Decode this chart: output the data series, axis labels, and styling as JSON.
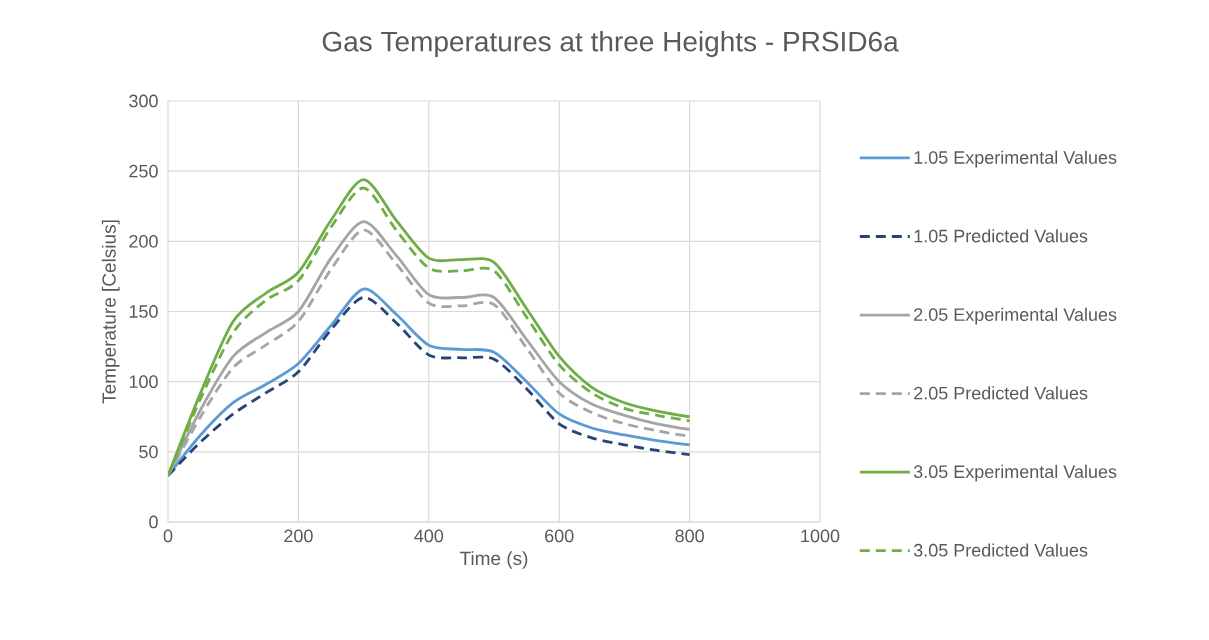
{
  "chart_data": {
    "type": "line",
    "title": "Gas Temperatures at three Heights - PRSID6a",
    "xlabel": "Time (s)",
    "ylabel": "Temperature [Celsius]",
    "x": [
      0,
      50,
      100,
      150,
      200,
      250,
      300,
      350,
      400,
      450,
      500,
      550,
      600,
      650,
      700,
      750,
      800
    ],
    "series": [
      {
        "name": "1.05 Experimental Values",
        "color": "#5b9bd5",
        "line_style": "solid",
        "values": [
          33,
          62,
          85,
          98,
          113,
          140,
          166,
          148,
          126,
          123,
          121,
          100,
          77,
          67,
          62,
          58,
          55
        ]
      },
      {
        "name": "1.05 Predicted Values",
        "color": "#264478",
        "line_style": "dashed",
        "values": [
          33,
          57,
          77,
          92,
          107,
          137,
          160,
          142,
          119,
          117,
          116,
          95,
          70,
          60,
          55,
          51,
          48
        ]
      },
      {
        "name": "2.05 Experimental Values",
        "color": "#a5a5a5",
        "line_style": "solid",
        "values": [
          33,
          80,
          118,
          135,
          150,
          188,
          214,
          190,
          162,
          160,
          160,
          130,
          100,
          84,
          76,
          70,
          66
        ]
      },
      {
        "name": "2.05 Predicted Values",
        "color": "#a5a5a5",
        "line_style": "dashed",
        "values": [
          33,
          75,
          110,
          126,
          143,
          180,
          208,
          184,
          156,
          154,
          155,
          124,
          92,
          78,
          70,
          65,
          61
        ]
      },
      {
        "name": "3.05 Experimental Values",
        "color": "#70ad47",
        "line_style": "solid",
        "values": [
          33,
          92,
          143,
          163,
          178,
          215,
          244,
          215,
          188,
          187,
          185,
          152,
          118,
          96,
          85,
          79,
          75
        ]
      },
      {
        "name": "3.05 Predicted Values",
        "color": "#70ad47",
        "line_style": "dashed",
        "values": [
          33,
          88,
          135,
          158,
          172,
          210,
          238,
          208,
          181,
          179,
          179,
          146,
          112,
          92,
          81,
          76,
          72
        ]
      }
    ],
    "xlim": [
      0,
      1000
    ],
    "ylim": [
      0,
      300
    ],
    "xticks": [
      0,
      200,
      400,
      600,
      800,
      1000
    ],
    "yticks": [
      0,
      50,
      100,
      150,
      200,
      250,
      300
    ],
    "grid": true,
    "legend": "right"
  }
}
